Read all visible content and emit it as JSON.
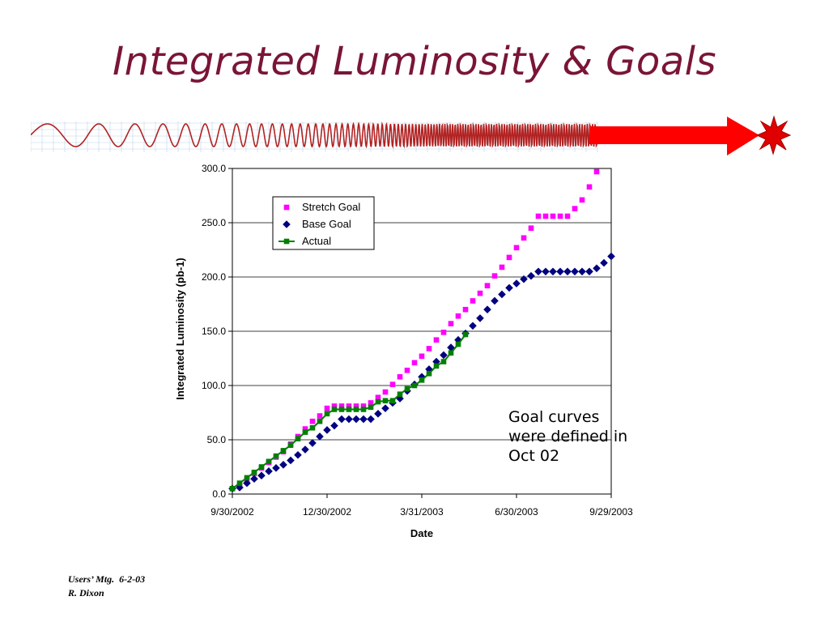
{
  "slide": {
    "title": "Integrated Luminosity & Goals",
    "annotation_lines": [
      "Goal curves",
      "were defined in",
      "Oct 02"
    ],
    "footer_lines": [
      "Users’ Mtg.  6-2-03",
      "R. Dixon"
    ]
  },
  "colors": {
    "title": "#7a1535",
    "stretch": "#ff00ff",
    "base": "#000080",
    "actual": "#008000",
    "banner_wave": "#b22222",
    "banner_arrow": "#ff0000",
    "banner_grid": "#bcd4ee"
  },
  "banner": {
    "icon": "accelerating-wave-arrow-icon"
  },
  "chart_data": {
    "type": "scatter",
    "xlabel": "Date",
    "ylabel": "Integrated Luminosity (pb-1)",
    "ylim": [
      0,
      300
    ],
    "yticks": [
      "0.0",
      "50.0",
      "100.0",
      "150.0",
      "200.0",
      "250.0",
      "300.0"
    ],
    "xticks": [
      "9/30/2002",
      "12/30/2002",
      "3/31/2003",
      "6/30/2003",
      "9/29/2003"
    ],
    "x_unit": "weeks since 9/30/2002",
    "xlim": [
      0,
      52
    ],
    "grid": "horizontal",
    "legend_position": "top-center",
    "series": [
      {
        "name": "Stretch Goal",
        "marker": "square",
        "line": false,
        "values": [
          5,
          8,
          13,
          19,
          24,
          29,
          34,
          39,
          46,
          53,
          60,
          67,
          72,
          79,
          81,
          81,
          81,
          81,
          81,
          84,
          89,
          94,
          101,
          108,
          114,
          121,
          127,
          134,
          142,
          149,
          157,
          164,
          170,
          178,
          185,
          192,
          201,
          209,
          218,
          227,
          236,
          245,
          256,
          256,
          256,
          256,
          256,
          263,
          271,
          283,
          297
        ]
      },
      {
        "name": "Base Goal",
        "marker": "diamond",
        "line": false,
        "values": [
          5,
          6,
          10,
          14,
          17,
          21,
          24,
          27,
          31,
          36,
          41,
          47,
          53,
          59,
          63,
          69,
          69,
          69,
          69,
          69,
          74,
          79,
          84,
          88,
          95,
          101,
          108,
          115,
          122,
          128,
          135,
          142,
          148,
          155,
          162,
          170,
          178,
          184,
          190,
          194,
          198,
          201,
          205,
          205,
          205,
          205,
          205,
          205,
          205,
          205,
          208,
          213,
          219
        ]
      },
      {
        "name": "Actual",
        "marker": "square",
        "line": true,
        "values": [
          5,
          10,
          15,
          20,
          25,
          30,
          35,
          40,
          45,
          51,
          57,
          61,
          67,
          74,
          78,
          78,
          78,
          78,
          78,
          80,
          85,
          86,
          86,
          92,
          97,
          100,
          105,
          111,
          118,
          122,
          130,
          138,
          147
        ]
      }
    ]
  }
}
